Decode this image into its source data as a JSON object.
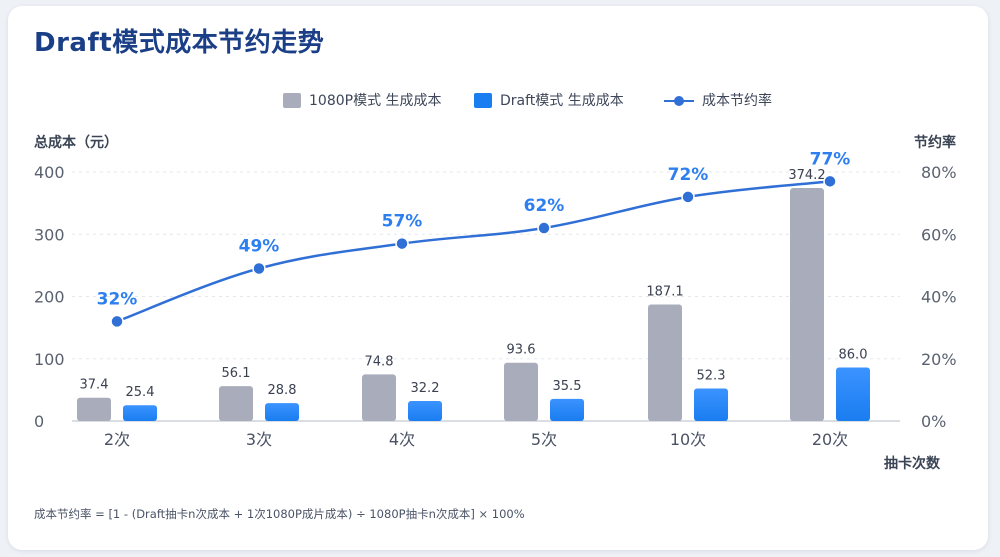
{
  "title": "Draft模式成本节约走势",
  "legend": {
    "bar1": "1080P模式 生成成本",
    "bar2": "Draft模式 生成成本",
    "line": "成本节约率"
  },
  "axes": {
    "left_title": "总成本（元）",
    "right_title": "节约率",
    "x_title": "抽卡次数"
  },
  "footnote": "成本节约率 = [1 - (Draft抽卡n次成本 + 1次1080P成片成本) ÷ 1080P抽卡n次成本] × 100%",
  "colors": {
    "bar1": "#a9adbb",
    "bar2": "#1a7df0",
    "line": "#2f6fd6",
    "line_label": "#2d7ff0",
    "title": "#1b3f86"
  },
  "chart_data": {
    "type": "bar",
    "categories": [
      "2次",
      "3次",
      "4次",
      "5次",
      "10次",
      "20次"
    ],
    "series": [
      {
        "name": "1080P模式 生成成本",
        "type": "bar",
        "axis": "left",
        "values": [
          37.4,
          56.1,
          74.8,
          93.6,
          187.1,
          374.2
        ],
        "labels": [
          "37.4",
          "56.1",
          "74.8",
          "93.6",
          "187.1",
          "374.2"
        ]
      },
      {
        "name": "Draft模式 生成成本",
        "type": "bar",
        "axis": "left",
        "values": [
          25.4,
          28.8,
          32.2,
          35.5,
          52.3,
          86.0
        ],
        "labels": [
          "25.4",
          "28.8",
          "32.2",
          "35.5",
          "52.3",
          "86.0"
        ]
      },
      {
        "name": "成本节约率",
        "type": "line",
        "axis": "right",
        "values": [
          32,
          49,
          57,
          62,
          72,
          77
        ],
        "labels": [
          "32%",
          "49%",
          "57%",
          "62%",
          "72%",
          "77%"
        ]
      }
    ],
    "ylim": [
      0,
      400
    ],
    "yticks": [
      "0",
      "100",
      "200",
      "300",
      "400"
    ],
    "y2lim": [
      0,
      80
    ],
    "y2ticks": [
      "0%",
      "20%",
      "40%",
      "60%",
      "80%"
    ],
    "ylabel": "总成本（元）",
    "y2label": "节约率",
    "xlabel": "抽卡次数",
    "grid": true,
    "legend_position": "top-center"
  }
}
